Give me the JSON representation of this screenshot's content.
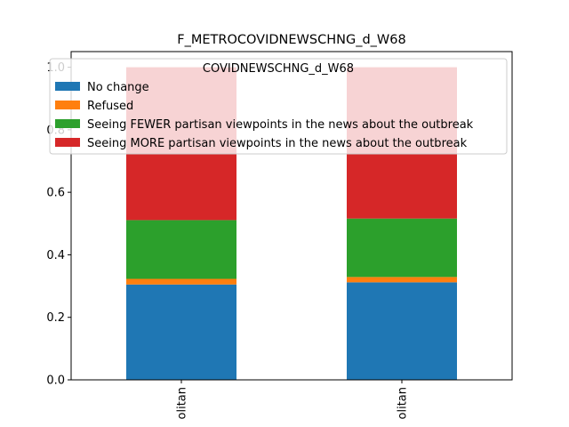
{
  "chart_data": {
    "type": "bar",
    "stacked": true,
    "title": "F_METROCOVIDNEWSCHNG_d_W68",
    "xlabel": "",
    "ylabel": "",
    "categories": [
      "olitan",
      "olitan"
    ],
    "ylim": [
      0,
      1.05
    ],
    "yticks": [
      "0.0",
      "0.2",
      "0.4",
      "0.6",
      "0.8",
      "1.0"
    ],
    "legend_title": "COVIDNEWSCHNG_d_W68",
    "legend_position": "top-right",
    "grid": false,
    "series": [
      {
        "name": "No change",
        "color": "#1f77b4",
        "values": [
          0.305,
          0.312
        ]
      },
      {
        "name": "Refused",
        "color": "#ff7f0e",
        "values": [
          0.018,
          0.017
        ]
      },
      {
        "name": "Seeing FEWER partisan viewpoints in the news about the outbreak",
        "color": "#2ca02c",
        "values": [
          0.188,
          0.187
        ]
      },
      {
        "name": "Seeing MORE partisan viewpoints in the news about the outbreak",
        "color": "#d62728",
        "values": [
          0.489,
          0.484
        ]
      }
    ]
  }
}
